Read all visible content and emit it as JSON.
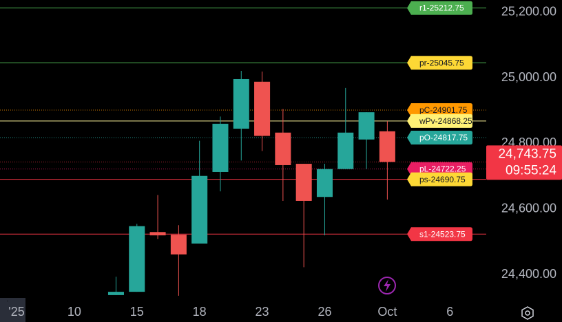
{
  "chart_data": {
    "type": "candlestick",
    "up_color": "#26a69a",
    "down_color": "#ef5350",
    "x": [
      2,
      3,
      4,
      5,
      6,
      7,
      8,
      9,
      10,
      11,
      12,
      13,
      14,
      15
    ],
    "open": [
      24338,
      24348,
      24530,
      24522,
      24495,
      24713,
      24845,
      24988,
      24833,
      24738,
      24637,
      24722,
      24812,
      24837
    ],
    "high": [
      24394,
      24555,
      24643,
      24551,
      24808,
      24882,
      25021,
      25019,
      24905,
      24738,
      24738,
      24969,
      24895,
      24868
    ],
    "low": [
      24338,
      24348,
      24509,
      24336,
      24495,
      24654,
      24748,
      24777,
      24625,
      24423,
      24520,
      24722,
      24722,
      24629
    ],
    "close": [
      24348,
      24548,
      24520,
      24462,
      24701,
      24860,
      24996,
      24823,
      24734,
      24625,
      24722,
      24833,
      24895,
      24743.75
    ],
    "xlim": [
      -3.56,
      19.74
    ],
    "xticks": [
      {
        "value": -3.2,
        "label": "'25"
      },
      {
        "value": 0,
        "label": "10"
      },
      {
        "value": 3,
        "label": "15"
      },
      {
        "value": 6,
        "label": "18"
      },
      {
        "value": 9,
        "label": "23"
      },
      {
        "value": 12,
        "label": "26"
      },
      {
        "value": 15,
        "label": "Oct"
      },
      {
        "value": 18,
        "label": "6"
      }
    ],
    "ylim": [
      24321,
      25237
    ],
    "yticks": [
      {
        "value": 24400,
        "label": "24,400.00"
      },
      {
        "value": 24600,
        "label": "24,600.00"
      },
      {
        "value": 24800,
        "label": "24,800.00"
      },
      {
        "value": 25000,
        "label": "25,000.00"
      },
      {
        "value": 25200,
        "label": "25,200.00"
      }
    ],
    "levels": [
      {
        "label": "r1-25212.75",
        "value": 25212.75,
        "color": "#4caf50",
        "tag_color": "#4caf50",
        "text_color": "#ffffff",
        "style": "solid"
      },
      {
        "label": "pr-25045.75",
        "value": 25045.75,
        "color": "#4caf50",
        "tag_color": "#fdd835",
        "text_color": "#131722",
        "style": "solid"
      },
      {
        "label": "pC-24901.75",
        "value": 24901.75,
        "color": "#ff9800",
        "tag_color": "#ff9800",
        "text_color": "#131722",
        "style": "dotted"
      },
      {
        "label": "wPv-24868.25",
        "value": 24868.25,
        "color": "#fff59d",
        "tag_color": "#fff176",
        "text_color": "#131722",
        "style": "solid"
      },
      {
        "label": "pO-24817.75",
        "value": 24817.75,
        "color": "#26a69a",
        "tag_color": "#26a69a",
        "text_color": "#ffffff",
        "style": "dotted"
      },
      {
        "label": "pL-24722.25",
        "value": 24722.25,
        "color": "#e91e63",
        "tag_color": "#e91e63",
        "text_color": "#ffffff",
        "style": "dotted"
      },
      {
        "label": "ps-24690.75",
        "value": 24690.75,
        "color": "#f23645",
        "tag_color": "#fdd835",
        "text_color": "#131722",
        "style": "solid"
      },
      {
        "label": "s1-24523.75",
        "value": 24523.75,
        "color": "#f23645",
        "tag_color": "#f23645",
        "text_color": "#ffffff",
        "style": "solid"
      }
    ],
    "last_price": {
      "value": 24743.75,
      "label": "24,743.75",
      "countdown": "09:55:24",
      "color": "#f23645"
    }
  }
}
